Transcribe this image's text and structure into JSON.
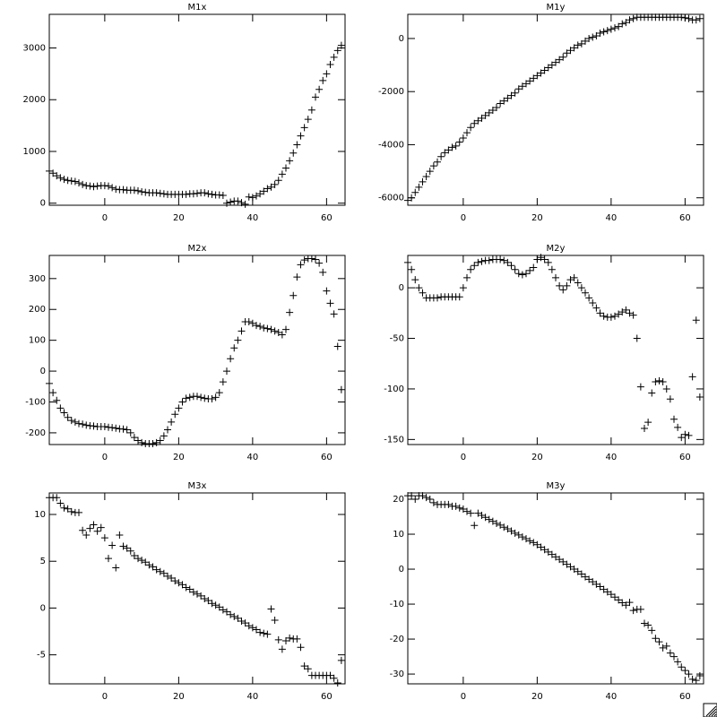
{
  "chart_data": [
    {
      "type": "scatter",
      "title": "M1x",
      "color": "#000000",
      "x": [
        -15,
        -14,
        -13,
        -12,
        -11,
        -10,
        -9,
        -8,
        -7,
        -6,
        -5,
        -4,
        -3,
        -2,
        -1,
        0,
        1,
        2,
        3,
        4,
        5,
        6,
        7,
        8,
        9,
        10,
        11,
        12,
        13,
        14,
        15,
        16,
        17,
        18,
        19,
        20,
        21,
        22,
        23,
        24,
        25,
        26,
        27,
        28,
        29,
        30,
        31,
        32,
        33,
        34,
        35,
        36,
        37,
        38,
        39,
        40,
        41,
        42,
        43,
        44,
        45,
        46,
        47,
        48,
        49,
        50,
        51,
        52,
        53,
        54,
        55,
        56,
        57,
        58,
        59,
        60,
        61,
        62,
        63,
        64
      ],
      "values": [
        620,
        580,
        530,
        490,
        460,
        440,
        430,
        420,
        390,
        360,
        340,
        330,
        320,
        330,
        340,
        340,
        330,
        300,
        270,
        260,
        260,
        250,
        250,
        250,
        240,
        220,
        210,
        200,
        200,
        200,
        190,
        180,
        170,
        170,
        170,
        170,
        170,
        170,
        180,
        180,
        190,
        200,
        200,
        180,
        170,
        160,
        160,
        150,
        0,
        20,
        40,
        40,
        10,
        -20,
        120,
        110,
        140,
        180,
        230,
        280,
        310,
        360,
        440,
        560,
        680,
        820,
        970,
        1130,
        1300,
        1460,
        1620,
        1800,
        2050,
        2200,
        2370,
        2500,
        2680,
        2820,
        2950,
        3050
      ],
      "xlim": [
        -15,
        65
      ],
      "xticks": [
        0,
        20,
        40,
        60
      ],
      "ylim": [
        -40,
        3650
      ],
      "yticks": [
        0,
        1000,
        2000,
        3000
      ]
    },
    {
      "type": "scatter",
      "title": "M1y",
      "color": "#000000",
      "x": [
        -15,
        -14,
        -13,
        -12,
        -11,
        -10,
        -9,
        -8,
        -7,
        -6,
        -5,
        -4,
        -3,
        -2,
        -1,
        0,
        1,
        2,
        3,
        4,
        5,
        6,
        7,
        8,
        9,
        10,
        11,
        12,
        13,
        14,
        15,
        16,
        17,
        18,
        19,
        20,
        21,
        22,
        23,
        24,
        25,
        26,
        27,
        28,
        29,
        30,
        31,
        32,
        33,
        34,
        35,
        36,
        37,
        38,
        39,
        40,
        41,
        42,
        43,
        44,
        45,
        46,
        47,
        48,
        49,
        50,
        51,
        52,
        53,
        54,
        55,
        56,
        57,
        58,
        59,
        60,
        61,
        62,
        63,
        64
      ],
      "values": [
        -6100,
        -6000,
        -5800,
        -5600,
        -5400,
        -5200,
        -5000,
        -4800,
        -4650,
        -4450,
        -4300,
        -4200,
        -4100,
        -4050,
        -3900,
        -3750,
        -3550,
        -3350,
        -3200,
        -3100,
        -3000,
        -2900,
        -2800,
        -2700,
        -2600,
        -2450,
        -2350,
        -2250,
        -2150,
        -2050,
        -1900,
        -1800,
        -1700,
        -1600,
        -1500,
        -1400,
        -1300,
        -1200,
        -1100,
        -1000,
        -900,
        -800,
        -700,
        -550,
        -450,
        -350,
        -250,
        -200,
        -100,
        0,
        50,
        100,
        200,
        250,
        300,
        350,
        400,
        450,
        550,
        600,
        700,
        750,
        800,
        800,
        800,
        800,
        800,
        800,
        800,
        800,
        800,
        800,
        800,
        800,
        800,
        780,
        750,
        700,
        700,
        750
      ],
      "xlim": [
        -15,
        65
      ],
      "xticks": [
        0,
        20,
        40,
        60
      ],
      "ylim": [
        -6280,
        910
      ],
      "yticks": [
        -6000,
        -4000,
        -2000,
        0
      ]
    },
    {
      "type": "scatter",
      "title": "M2x",
      "color": "#000000",
      "x": [
        -15,
        -14,
        -13,
        -12,
        -11,
        -10,
        -9,
        -8,
        -7,
        -6,
        -5,
        -4,
        -3,
        -2,
        -1,
        0,
        1,
        2,
        3,
        4,
        5,
        6,
        7,
        8,
        9,
        10,
        11,
        12,
        13,
        14,
        15,
        16,
        17,
        18,
        19,
        20,
        21,
        22,
        23,
        24,
        25,
        26,
        27,
        28,
        29,
        30,
        31,
        32,
        33,
        34,
        35,
        36,
        37,
        38,
        39,
        40,
        41,
        42,
        43,
        44,
        45,
        46,
        47,
        48,
        49,
        50,
        51,
        52,
        53,
        54,
        55,
        56,
        57,
        58,
        59,
        60,
        61,
        62,
        63,
        64
      ],
      "values": [
        -40,
        -70,
        -95,
        -120,
        -135,
        -150,
        -160,
        -165,
        -170,
        -172,
        -175,
        -177,
        -178,
        -180,
        -180,
        -180,
        -182,
        -183,
        -185,
        -187,
        -188,
        -190,
        -200,
        -215,
        -225,
        -232,
        -235,
        -235,
        -235,
        -232,
        -225,
        -210,
        -190,
        -165,
        -140,
        -120,
        -100,
        -88,
        -85,
        -82,
        -82,
        -85,
        -88,
        -90,
        -90,
        -85,
        -70,
        -35,
        0,
        40,
        75,
        100,
        130,
        160,
        160,
        155,
        148,
        145,
        140,
        138,
        135,
        130,
        125,
        118,
        135,
        190,
        245,
        305,
        345,
        360,
        365,
        365,
        362,
        350,
        320,
        260,
        220,
        185,
        80,
        -60
      ],
      "xlim": [
        -15,
        65
      ],
      "xticks": [
        0,
        20,
        40,
        60
      ],
      "ylim": [
        -238,
        375
      ],
      "yticks": [
        -200,
        -100,
        0,
        100,
        200,
        300
      ]
    },
    {
      "type": "scatter",
      "title": "M2y",
      "color": "#000000",
      "x": [
        -15,
        -14,
        -13,
        -12,
        -11,
        -10,
        -9,
        -8,
        -7,
        -6,
        -5,
        -4,
        -3,
        -2,
        -1,
        0,
        1,
        2,
        3,
        4,
        5,
        6,
        7,
        8,
        9,
        10,
        11,
        12,
        13,
        14,
        15,
        16,
        17,
        18,
        19,
        20,
        21,
        22,
        23,
        24,
        25,
        26,
        27,
        28,
        29,
        30,
        31,
        32,
        33,
        34,
        35,
        36,
        37,
        38,
        39,
        40,
        41,
        42,
        43,
        44,
        45,
        46,
        47,
        48,
        49,
        50,
        51,
        52,
        53,
        54,
        55,
        56,
        57,
        58,
        59,
        60,
        61,
        62,
        63,
        64
      ],
      "values": [
        25,
        18,
        8,
        0,
        -5,
        -10,
        -10,
        -10,
        -10,
        -9,
        -9,
        -9,
        -9,
        -9,
        -9,
        0,
        10,
        18,
        22,
        25,
        26,
        27,
        27,
        28,
        28,
        28,
        27,
        25,
        22,
        18,
        14,
        13,
        14,
        17,
        20,
        28,
        30,
        28,
        25,
        18,
        10,
        2,
        -2,
        2,
        8,
        10,
        5,
        0,
        -5,
        -10,
        -15,
        -20,
        -25,
        -28,
        -29,
        -29,
        -28,
        -26,
        -24,
        -22,
        -25,
        -27,
        -50,
        -98,
        -139,
        -133,
        -104,
        -93,
        -92,
        -93,
        -100,
        -110,
        -130,
        -138,
        -148,
        -145,
        -146,
        -88,
        -32,
        -108
      ],
      "xlim": [
        -15,
        65
      ],
      "xticks": [
        0,
        20,
        40,
        60
      ],
      "ylim": [
        -155,
        32
      ],
      "yticks": [
        -150,
        -100,
        -50,
        0
      ]
    },
    {
      "type": "scatter",
      "title": "M3x",
      "color": "#000000",
      "x": [
        -15,
        -14,
        -13,
        -12,
        -11,
        -10,
        -9,
        -8,
        -7,
        -6,
        -5,
        -4,
        -3,
        -2,
        -1,
        0,
        1,
        2,
        3,
        4,
        5,
        6,
        7,
        8,
        9,
        10,
        11,
        12,
        13,
        14,
        15,
        16,
        17,
        18,
        19,
        20,
        21,
        22,
        23,
        24,
        25,
        26,
        27,
        28,
        29,
        30,
        31,
        32,
        33,
        34,
        35,
        36,
        37,
        38,
        39,
        40,
        41,
        42,
        43,
        44,
        45,
        46,
        47,
        48,
        49,
        50,
        51,
        52,
        53,
        54,
        55,
        56,
        57,
        58,
        59,
        60,
        61,
        62,
        63,
        64
      ],
      "values": [
        11.8,
        11.8,
        11.8,
        11.2,
        10.7,
        10.6,
        10.3,
        10.2,
        10.2,
        8.3,
        7.8,
        8.5,
        8.9,
        8.2,
        8.6,
        7.5,
        5.3,
        6.7,
        4.3,
        7.8,
        6.6,
        6.4,
        6.1,
        5.6,
        5.3,
        5.1,
        4.9,
        4.6,
        4.4,
        4.1,
        3.9,
        3.7,
        3.4,
        3.2,
        2.9,
        2.7,
        2.5,
        2.2,
        2.0,
        1.7,
        1.5,
        1.3,
        1.0,
        0.8,
        0.5,
        0.3,
        0.1,
        -0.2,
        -0.4,
        -0.7,
        -0.9,
        -1.1,
        -1.4,
        -1.6,
        -1.9,
        -2.1,
        -2.3,
        -2.6,
        -2.7,
        -2.8,
        -0.1,
        -1.3,
        -3.4,
        -4.4,
        -3.5,
        -3.2,
        -3.3,
        -3.3,
        -4.2,
        -6.2,
        -6.5,
        -7.2,
        -7.2,
        -7.2,
        -7.2,
        -7.2,
        -7.2,
        -7.5,
        -8.0,
        -5.6
      ],
      "xlim": [
        -15,
        65
      ],
      "xticks": [
        0,
        20,
        40,
        60
      ],
      "ylim": [
        -8.1,
        12.3
      ],
      "yticks": [
        -5,
        0,
        5,
        10
      ]
    },
    {
      "type": "scatter",
      "title": "M3y",
      "color": "#000000",
      "x": [
        -15,
        -14,
        -13,
        -12,
        -11,
        -10,
        -9,
        -8,
        -7,
        -6,
        -5,
        -4,
        -3,
        -2,
        -1,
        0,
        1,
        2,
        3,
        4,
        5,
        6,
        7,
        8,
        9,
        10,
        11,
        12,
        13,
        14,
        15,
        16,
        17,
        18,
        19,
        20,
        21,
        22,
        23,
        24,
        25,
        26,
        27,
        28,
        29,
        30,
        31,
        32,
        33,
        34,
        35,
        36,
        37,
        38,
        39,
        40,
        41,
        42,
        43,
        44,
        45,
        46,
        47,
        48,
        49,
        50,
        51,
        52,
        53,
        54,
        55,
        56,
        57,
        58,
        59,
        60,
        61,
        62,
        63,
        64
      ],
      "values": [
        21,
        21,
        20,
        21,
        21,
        20.5,
        20,
        19,
        18.5,
        18.5,
        18.5,
        18.5,
        18,
        18,
        17.5,
        17.2,
        16.5,
        16,
        12.5,
        16,
        15.4,
        14.8,
        14.2,
        13.7,
        13.1,
        12.6,
        12,
        11.5,
        10.9,
        10.3,
        9.8,
        9.2,
        8.7,
        8.1,
        7.6,
        7.0,
        6.3,
        5.6,
        4.9,
        4.2,
        3.5,
        2.8,
        2.1,
        1.4,
        0.7,
        0,
        -0.7,
        -1.4,
        -2.2,
        -2.9,
        -3.6,
        -4.3,
        -5.0,
        -5.8,
        -6.5,
        -7.2,
        -8,
        -8.8,
        -9.6,
        -10.3,
        -9.5,
        -11.8,
        -11.5,
        -11.5,
        -15.5,
        -16,
        -17.5,
        -19.8,
        -20.8,
        -22.5,
        -22,
        -24,
        -25,
        -26.5,
        -28,
        -29,
        -30,
        -31.5,
        -31.8,
        -30.5
      ],
      "xlim": [
        -15,
        65
      ],
      "xticks": [
        0,
        20,
        40,
        60
      ],
      "ylim": [
        -32.8,
        21.8
      ],
      "yticks": [
        -30,
        -20,
        -10,
        0,
        10,
        20
      ]
    }
  ]
}
